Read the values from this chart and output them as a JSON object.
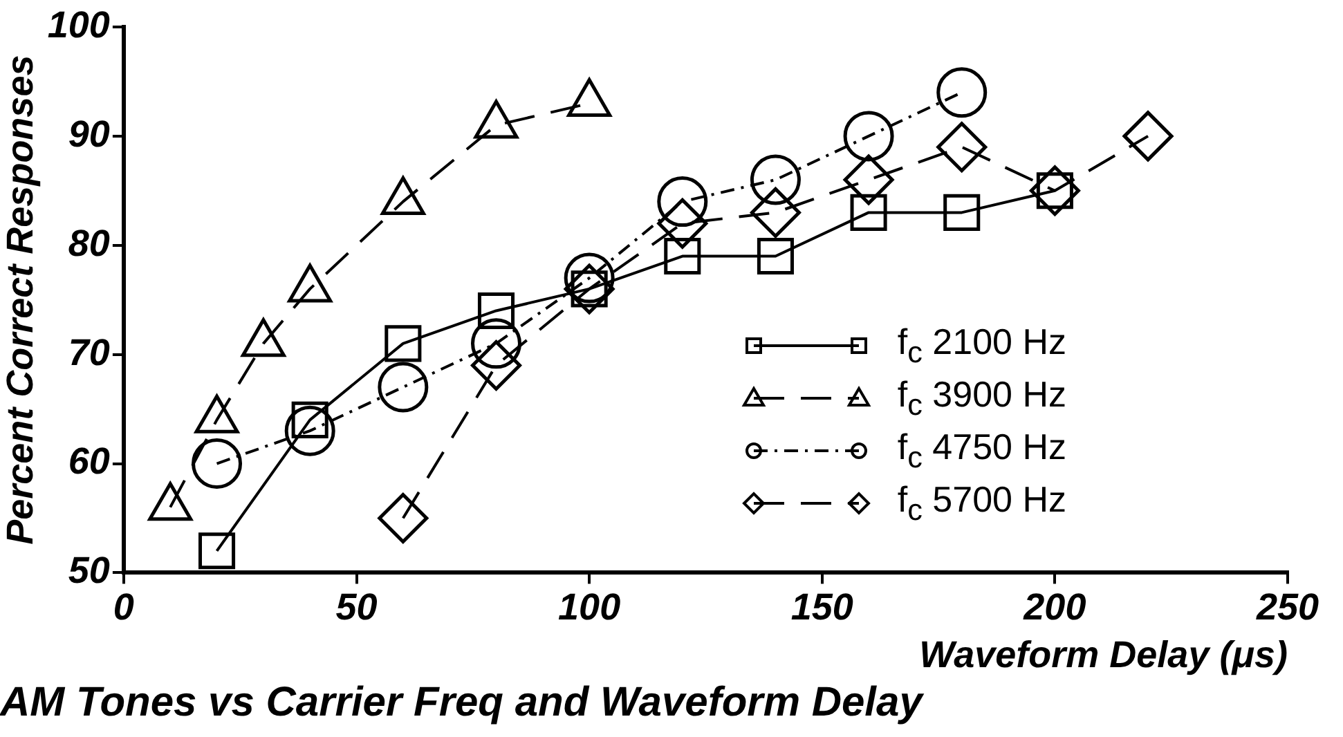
{
  "chart_data": {
    "type": "line",
    "title": "AM Tones vs Carrier Freq and Waveform Delay",
    "xlabel": "Waveform Delay (μs)",
    "ylabel": "Percent Correct Responses",
    "xlim": [
      0,
      250
    ],
    "xticks": [
      0,
      50,
      100,
      150,
      200,
      250
    ],
    "ylim": [
      50,
      100
    ],
    "yticks": [
      50,
      60,
      70,
      80,
      90,
      100
    ],
    "grid": false,
    "legend": "bottom right",
    "series": [
      {
        "name": "f$_{c}$ 2100 Hz",
        "color": "#000000",
        "marker": "square",
        "line_style": "solid",
        "x": [
          20,
          40,
          60,
          80,
          100,
          120,
          140,
          160,
          180,
          200
        ],
        "values": [
          52,
          64,
          71,
          74,
          76,
          79,
          79,
          83,
          83,
          85
        ]
      },
      {
        "name": "f$_{c}$ 3900 Hz",
        "color": "#000000",
        "marker": "triangle",
        "line_style": "dashed",
        "x": [
          10,
          20,
          30,
          40,
          60,
          80,
          100
        ],
        "values": [
          56,
          64,
          71,
          76,
          84,
          91,
          93
        ]
      },
      {
        "name": "f$_{c}$ 4750 Hz",
        "color": "#000000",
        "marker": "circle",
        "line_style": "dotted",
        "x": [
          20,
          40,
          60,
          80,
          100,
          120,
          140,
          160,
          180
        ],
        "values": [
          60,
          63,
          67,
          71,
          77,
          84,
          86,
          90,
          94
        ]
      },
      {
        "name": "f$_{c}$ 5700 Hz",
        "color": "#000000",
        "marker": "diamond",
        "line_style": "dashed",
        "x": [
          60,
          80,
          100,
          120,
          140,
          160,
          180,
          200,
          220
        ],
        "values": [
          55,
          69,
          76,
          82,
          83,
          86,
          89,
          85,
          90
        ]
      }
    ]
  }
}
